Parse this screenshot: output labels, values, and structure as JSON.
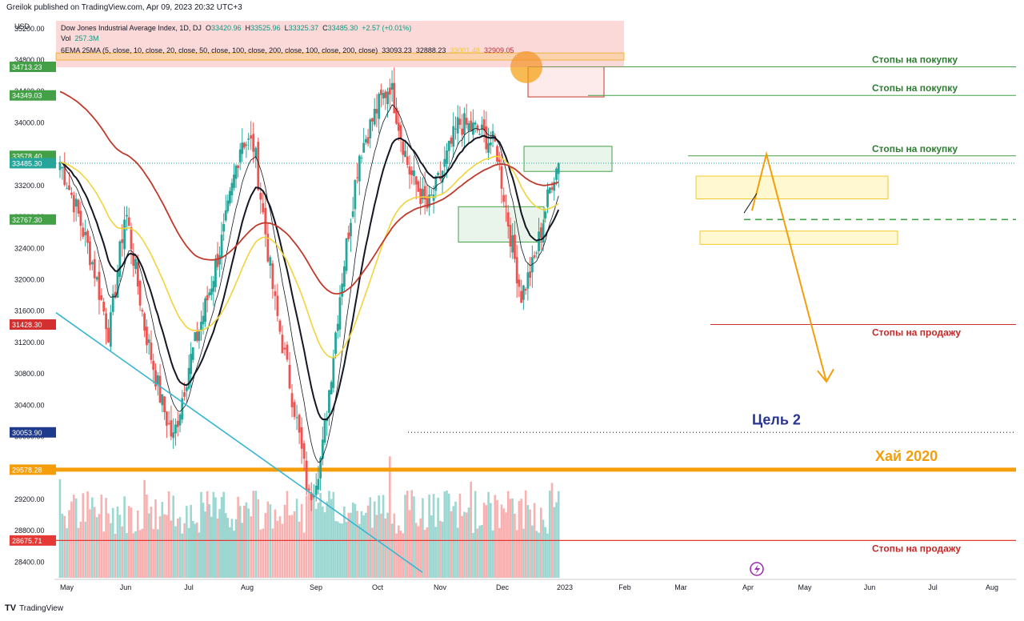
{
  "header": {
    "text": "Greilok published on TradingView.com, Apr 09, 2023 20:32 UTC+3"
  },
  "footer": {
    "logo": "TV",
    "text": "TradingView"
  },
  "legend": {
    "symbol": "Dow Jones Industrial Average Index, 1D, DJ",
    "o_label": "O",
    "o": "33420.96",
    "h_label": "H",
    "h": "33525.96",
    "l_label": "L",
    "l": "33325.37",
    "c_label": "C",
    "c": "33485.30",
    "chg": "+2.57 (+0.01%)",
    "vol_label": "Vol",
    "vol": "257.3M",
    "ema_label": "6EMA 25MA (5, close, 10, close, 20, close, 50, close, 100, close, 200, close, 100, close, 200, close)",
    "ema_v1": "33093.23",
    "ema_v2": "32888.23",
    "ema_v3": "33001.48",
    "ema_v4": "32909.05"
  },
  "axis_unit": "USD",
  "chart_data": {
    "type": "line",
    "title": "Dow Jones Industrial Average Index, 1D, DJ",
    "x": [
      "May",
      "Jun",
      "Jul",
      "Aug",
      "Sep",
      "Oct",
      "Nov",
      "Dec",
      "2023",
      "Feb",
      "Mar",
      "Apr",
      "May",
      "Jun",
      "Jul",
      "Aug"
    ],
    "y_ticks": [
      35200,
      34800,
      34400,
      34000,
      33600,
      33200,
      32800,
      32400,
      32000,
      31600,
      31200,
      30800,
      30400,
      30000,
      29600,
      29200,
      28800,
      28400
    ],
    "ylim": [
      28000,
      35500
    ],
    "series": [
      {
        "values": [
          {
            "t": 0,
            "c": 33500
          },
          {
            "t": 0.25,
            "c": 32900
          },
          {
            "t": 0.5,
            "c": 32200
          },
          {
            "t": 0.75,
            "c": 31300
          },
          {
            "t": 1,
            "c": 32900
          },
          {
            "t": 1.3,
            "c": 31400
          },
          {
            "t": 1.55,
            "c": 30500
          },
          {
            "t": 1.75,
            "c": 29950
          },
          {
            "t": 2,
            "c": 30900
          },
          {
            "t": 2.3,
            "c": 31700
          },
          {
            "t": 2.6,
            "c": 32600
          },
          {
            "t": 2.9,
            "c": 33800
          },
          {
            "t": 3.1,
            "c": 33700
          },
          {
            "t": 3.4,
            "c": 31700
          },
          {
            "t": 3.7,
            "c": 30300
          },
          {
            "t": 3.9,
            "c": 29200
          },
          {
            "t": 4.1,
            "c": 29800
          },
          {
            "t": 4.4,
            "c": 31900
          },
          {
            "t": 4.7,
            "c": 33600
          },
          {
            "t": 5,
            "c": 34200
          },
          {
            "t": 5.2,
            "c": 34500
          },
          {
            "t": 5.5,
            "c": 33400
          },
          {
            "t": 5.8,
            "c": 32900
          },
          {
            "t": 6,
            "c": 33300
          },
          {
            "t": 6.3,
            "c": 34000
          },
          {
            "t": 6.6,
            "c": 33900
          },
          {
            "t": 6.9,
            "c": 33700
          },
          {
            "t": 7.1,
            "c": 32700
          },
          {
            "t": 7.3,
            "c": 31800
          },
          {
            "t": 7.5,
            "c": 32200
          },
          {
            "t": 7.8,
            "c": 33300
          },
          {
            "t": 7.9,
            "c": 33485
          }
        ]
      }
    ],
    "levels": [
      {
        "price": 34713.23,
        "label": "Стопы на покупку"
      },
      {
        "price": 34349.03,
        "label": "Стопы на покупку"
      },
      {
        "price": 33578.4,
        "label": "Стопы на покупку"
      },
      {
        "price": 33485.3
      },
      {
        "price": 32767.3
      },
      {
        "price": 31428.3,
        "label": "Стопы на продажу"
      },
      {
        "price": 30053.9,
        "label": "Цель 2"
      },
      {
        "price": 29578.28,
        "label": "Хай 2020"
      },
      {
        "price": 28675.71,
        "label": "Стопы на продажу"
      }
    ],
    "grid": false,
    "colors": {
      "up": "#26a69a",
      "down": "#ef5350",
      "ema_black": "#131722",
      "ema_yellow": "#f2d33a",
      "ma_red": "#c0392b",
      "orange": "#f59e0b",
      "cyan": "#35b6d0",
      "green": "#43a047",
      "red_line": "#d32f2f"
    }
  }
}
